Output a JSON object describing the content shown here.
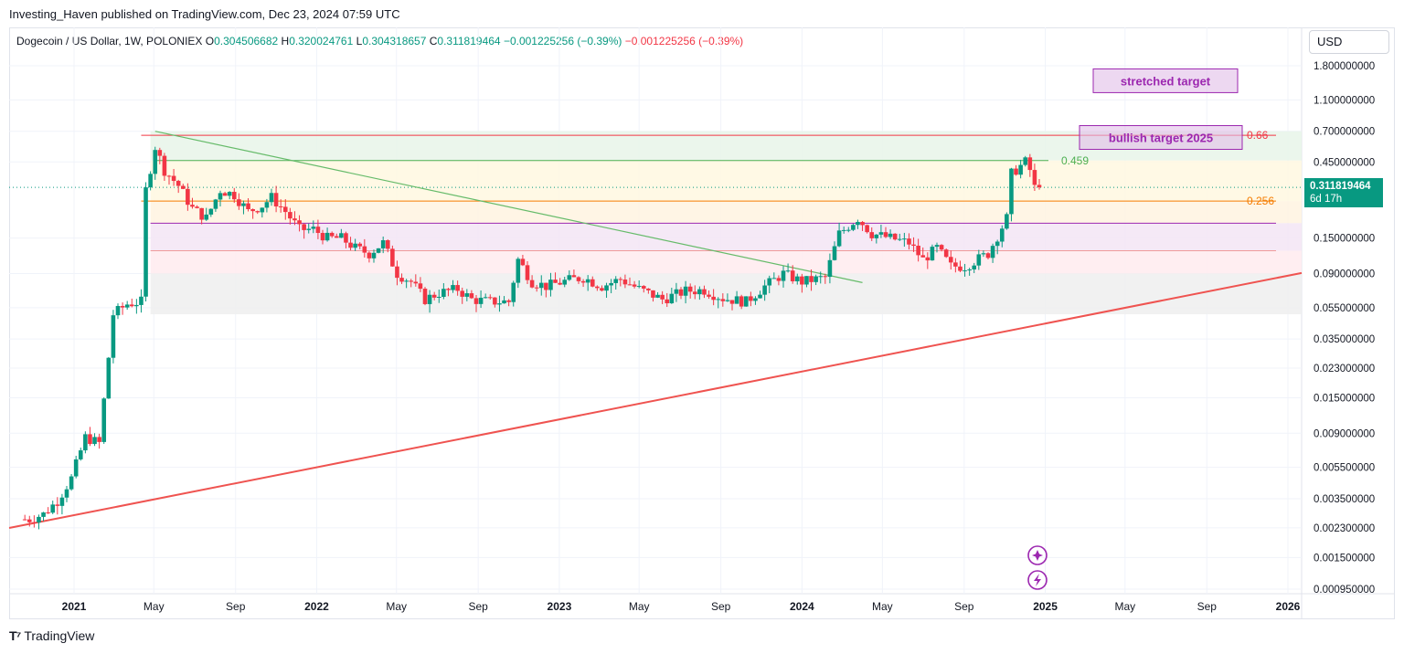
{
  "header": {
    "published": "Investing_Haven published on TradingView.com, Dec 23, 2024 07:59 UTC"
  },
  "legend": {
    "symbol": "Dogecoin / US Dollar, 1W, POLONIEX",
    "o_label": "O",
    "o_value": "0.304506682",
    "h_label": "H",
    "h_value": "0.320024761",
    "l_label": "L",
    "l_value": "0.304318657",
    "c_label": "C",
    "c_value": "0.311819464",
    "change": "−0.001225256 (−0.39%)",
    "change2": "−0.001225256 (−0.39%)"
  },
  "currency": "USD",
  "price_tag": {
    "value": "0.311819464",
    "countdown": "6d 17h"
  },
  "brand": {
    "name": "TradingView"
  },
  "colors": {
    "up": "#089981",
    "down": "#f23645",
    "accent": "#9c27b0"
  },
  "chart_data": {
    "type": "candlestick",
    "scale": "log",
    "y_ticks": [
      "1.800000000",
      "1.100000000",
      "0.700000000",
      "0.450000000",
      "0.150000000",
      "0.090000000",
      "0.055000000",
      "0.035000000",
      "0.023000000",
      "0.015000000",
      "0.009000000",
      "0.005500000",
      "0.003500000",
      "0.002300000",
      "0.001500000",
      "0.000950000"
    ],
    "y_tick_values": [
      1.8,
      1.1,
      0.7,
      0.45,
      0.15,
      0.09,
      0.055,
      0.035,
      0.023,
      0.015,
      0.009,
      0.0055,
      0.0035,
      0.0023,
      0.0015,
      0.00095
    ],
    "x_ticks": [
      {
        "label": "2021",
        "date": "2021-01-01",
        "bold": true
      },
      {
        "label": "May",
        "date": "2021-05-01",
        "bold": false
      },
      {
        "label": "Sep",
        "date": "2021-09-01",
        "bold": false
      },
      {
        "label": "2022",
        "date": "2022-01-01",
        "bold": true
      },
      {
        "label": "May",
        "date": "2022-05-01",
        "bold": false
      },
      {
        "label": "Sep",
        "date": "2022-09-01",
        "bold": false
      },
      {
        "label": "2023",
        "date": "2023-01-01",
        "bold": true
      },
      {
        "label": "May",
        "date": "2023-05-01",
        "bold": false
      },
      {
        "label": "Sep",
        "date": "2023-09-01",
        "bold": false
      },
      {
        "label": "2024",
        "date": "2024-01-01",
        "bold": true
      },
      {
        "label": "May",
        "date": "2024-05-01",
        "bold": false
      },
      {
        "label": "Sep",
        "date": "2024-09-01",
        "bold": false
      },
      {
        "label": "2025",
        "date": "2025-01-01",
        "bold": true
      },
      {
        "label": "May",
        "date": "2025-05-01",
        "bold": false
      },
      {
        "label": "Sep",
        "date": "2025-09-01",
        "bold": false
      },
      {
        "label": "2026",
        "date": "2026-01-01",
        "bold": true
      }
    ],
    "close_path": [
      [
        "2020-10-26",
        0.0026
      ],
      [
        "2020-11-16",
        0.0028
      ],
      [
        "2020-12-07",
        0.0034
      ],
      [
        "2020-12-28",
        0.0047
      ],
      [
        "2021-01-18",
        0.0085
      ],
      [
        "2021-02-08",
        0.0078
      ],
      [
        "2021-03-01",
        0.05
      ],
      [
        "2021-03-22",
        0.058
      ],
      [
        "2021-04-12",
        0.06
      ],
      [
        "2021-04-19",
        0.3
      ],
      [
        "2021-05-03",
        0.56
      ],
      [
        "2021-05-17",
        0.4
      ],
      [
        "2021-06-07",
        0.32
      ],
      [
        "2021-06-28",
        0.23
      ],
      [
        "2021-07-19",
        0.2
      ],
      [
        "2021-08-09",
        0.3
      ],
      [
        "2021-08-30",
        0.28
      ],
      [
        "2021-09-20",
        0.22
      ],
      [
        "2021-10-11",
        0.24
      ],
      [
        "2021-10-25",
        0.27
      ],
      [
        "2021-11-15",
        0.22
      ],
      [
        "2021-12-06",
        0.17
      ],
      [
        "2021-12-27",
        0.17
      ],
      [
        "2022-01-17",
        0.15
      ],
      [
        "2022-02-07",
        0.15
      ],
      [
        "2022-02-28",
        0.13
      ],
      [
        "2022-03-21",
        0.12
      ],
      [
        "2022-04-11",
        0.14
      ],
      [
        "2022-05-02",
        0.09
      ],
      [
        "2022-05-23",
        0.08
      ],
      [
        "2022-06-13",
        0.062
      ],
      [
        "2022-07-04",
        0.068
      ],
      [
        "2022-08-01",
        0.072
      ],
      [
        "2022-08-22",
        0.062
      ],
      [
        "2022-09-19",
        0.06
      ],
      [
        "2022-10-17",
        0.06
      ],
      [
        "2022-10-31",
        0.11
      ],
      [
        "2022-11-21",
        0.08
      ],
      [
        "2022-12-12",
        0.075
      ],
      [
        "2023-01-16",
        0.082
      ],
      [
        "2023-02-06",
        0.085
      ],
      [
        "2023-03-06",
        0.075
      ],
      [
        "2023-04-03",
        0.083
      ],
      [
        "2023-05-01",
        0.072
      ],
      [
        "2023-06-05",
        0.062
      ],
      [
        "2023-07-10",
        0.07
      ],
      [
        "2023-08-07",
        0.071
      ],
      [
        "2023-09-04",
        0.063
      ],
      [
        "2023-10-09",
        0.06
      ],
      [
        "2023-11-06",
        0.075
      ],
      [
        "2023-12-04",
        0.09
      ],
      [
        "2024-01-01",
        0.08
      ],
      [
        "2024-02-05",
        0.085
      ],
      [
        "2024-02-26",
        0.16
      ],
      [
        "2024-03-25",
        0.2
      ],
      [
        "2024-04-15",
        0.16
      ],
      [
        "2024-05-13",
        0.15
      ],
      [
        "2024-06-10",
        0.14
      ],
      [
        "2024-07-01",
        0.11
      ],
      [
        "2024-07-22",
        0.13
      ],
      [
        "2024-08-12",
        0.1
      ],
      [
        "2024-09-02",
        0.1
      ],
      [
        "2024-10-07",
        0.12
      ],
      [
        "2024-11-04",
        0.2
      ],
      [
        "2024-11-11",
        0.38
      ],
      [
        "2024-12-02",
        0.45
      ],
      [
        "2024-12-09",
        0.4
      ],
      [
        "2024-12-16",
        0.31
      ],
      [
        "2024-12-23",
        0.3118
      ]
    ],
    "horizontal_levels": [
      {
        "value": 0.66,
        "label": "0.66",
        "color": "#f23645"
      },
      {
        "value": 0.459,
        "label": "0.459",
        "color": "#4caf50"
      },
      {
        "value": 0.256,
        "label": "0.256",
        "color": "#f57c00"
      },
      {
        "value": 0.186,
        "label": "",
        "color": "#9c27b0"
      },
      {
        "value": 0.125,
        "label": "",
        "color": "#ef9a9a"
      }
    ],
    "zones": [
      {
        "from": 0.459,
        "to": 0.7,
        "color": "#e8f5e9"
      },
      {
        "from": 0.256,
        "to": 0.459,
        "color": "#fff8e1"
      },
      {
        "from": 0.186,
        "to": 0.256,
        "color": "#fff3e0"
      },
      {
        "from": 0.125,
        "to": 0.186,
        "color": "#f3e5f5"
      },
      {
        "from": 0.09,
        "to": 0.125,
        "color": "#ffebee"
      },
      {
        "from": 0.05,
        "to": 0.09,
        "color": "#eeeeee"
      }
    ],
    "trendlines": [
      {
        "from": [
          "2021-05-03",
          0.7
        ],
        "to": [
          "2024-04-01",
          0.079
        ],
        "color": "#66bb6a"
      },
      {
        "from": [
          "2020-10-19",
          0.0024
        ],
        "to": [
          "2026-02-15",
          0.095
        ],
        "color": "#ef5350"
      }
    ],
    "annotations": [
      {
        "text": "stretched target",
        "value": 1.45
      },
      {
        "text": "bullish target 2025",
        "value": 0.64
      }
    ]
  }
}
